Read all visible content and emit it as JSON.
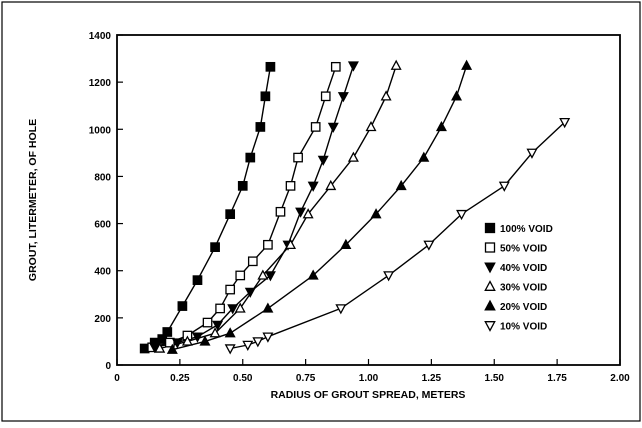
{
  "chart_data": {
    "type": "scatter",
    "title": "",
    "xlabel": "RADIUS OF GROUT SPREAD, METERS",
    "ylabel": "GROUT, LITERMETER, OF HOLE",
    "xlim": [
      0,
      2.0
    ],
    "ylim": [
      0,
      1400
    ],
    "x_ticks": [
      0,
      0.25,
      0.5,
      0.75,
      1.0,
      1.25,
      1.5,
      1.75,
      2.0
    ],
    "x_tick_labels": [
      "0",
      "0.25",
      "0.50",
      "0.75",
      "1.00",
      "1.25",
      "1.50",
      "1.75",
      "2.00"
    ],
    "y_ticks": [
      0,
      200,
      400,
      600,
      800,
      1000,
      1200,
      1400
    ],
    "y_tick_labels": [
      "0",
      "200",
      "400",
      "600",
      "800",
      "1000",
      "1200",
      "1400"
    ],
    "grid": false,
    "legend_position": "right",
    "series": [
      {
        "name": "100% VOID",
        "marker": "filled-square",
        "x": [
          0.11,
          0.15,
          0.18,
          0.2,
          0.26,
          0.32,
          0.39,
          0.45,
          0.5,
          0.53,
          0.57,
          0.59,
          0.61
        ],
        "y": [
          70,
          95,
          110,
          140,
          250,
          360,
          500,
          640,
          760,
          880,
          1010,
          1140,
          1265
        ]
      },
      {
        "name": "50% VOID",
        "marker": "open-square",
        "x": [
          0.14,
          0.21,
          0.28,
          0.36,
          0.41,
          0.45,
          0.49,
          0.54,
          0.6,
          0.65,
          0.69,
          0.72,
          0.79,
          0.83,
          0.87
        ],
        "y": [
          75,
          95,
          125,
          180,
          240,
          320,
          380,
          440,
          510,
          650,
          760,
          880,
          1010,
          1140,
          1265
        ]
      },
      {
        "name": "40% VOID",
        "marker": "filled-triangle-down",
        "x": [
          0.15,
          0.24,
          0.32,
          0.4,
          0.46,
          0.53,
          0.61,
          0.68,
          0.73,
          0.78,
          0.82,
          0.86,
          0.9,
          0.94
        ],
        "y": [
          75,
          95,
          120,
          170,
          240,
          310,
          380,
          510,
          650,
          760,
          870,
          1010,
          1140,
          1270
        ]
      },
      {
        "name": "30% VOID",
        "marker": "open-triangle-up",
        "x": [
          0.17,
          0.28,
          0.39,
          0.49,
          0.58,
          0.69,
          0.76,
          0.85,
          0.94,
          1.01,
          1.07,
          1.11
        ],
        "y": [
          70,
          100,
          135,
          240,
          380,
          510,
          640,
          760,
          880,
          1010,
          1140,
          1270
        ]
      },
      {
        "name": "20% VOID",
        "marker": "filled-triangle-up",
        "x": [
          0.22,
          0.35,
          0.45,
          0.6,
          0.78,
          0.91,
          1.03,
          1.13,
          1.22,
          1.29,
          1.35,
          1.39
        ],
        "y": [
          65,
          100,
          135,
          240,
          380,
          510,
          640,
          760,
          880,
          1010,
          1140,
          1270
        ]
      },
      {
        "name": "10% VOID",
        "marker": "open-triangle-down",
        "x": [
          0.45,
          0.52,
          0.56,
          0.6,
          0.89,
          1.08,
          1.24,
          1.37,
          1.54,
          1.65,
          1.78
        ],
        "y": [
          70,
          85,
          100,
          120,
          240,
          380,
          510,
          640,
          760,
          900,
          1030
        ]
      }
    ]
  }
}
